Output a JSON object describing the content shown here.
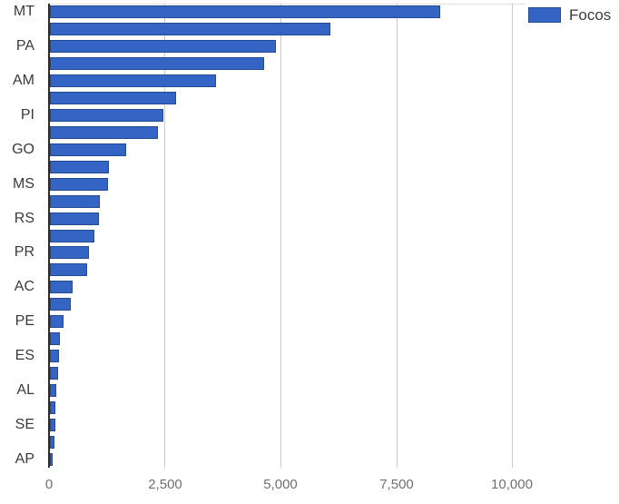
{
  "legend": {
    "label": "Focos"
  },
  "colors": {
    "bar_fill": "#3565c4",
    "bar_border": "#26498f",
    "gridline": "#cccccc",
    "axis_line": "#2b2b2b",
    "y_label_text": "#3a3a3a",
    "x_label_text": "#6f6f6f"
  },
  "chart_data": {
    "type": "bar",
    "orientation": "horizontal",
    "title": "",
    "xlabel": "",
    "ylabel": "",
    "series_name": "Focos",
    "legend_position": "top-right",
    "grid": true,
    "xlim": [
      0,
      10000
    ],
    "x_ticks": [
      {
        "label": "0",
        "value": 0
      },
      {
        "label": "2,500",
        "value": 2500
      },
      {
        "label": "5,000",
        "value": 5000
      },
      {
        "label": "7,500",
        "value": 7500
      },
      {
        "label": "10,000",
        "value": 10000
      }
    ],
    "categories": [
      "MT",
      "",
      "PA",
      "",
      "AM",
      "",
      "PI",
      "",
      "GO",
      "",
      "MS",
      "",
      "RS",
      "",
      "PR",
      "",
      "AC",
      "",
      "PE",
      "",
      "ES",
      "",
      "AL",
      "",
      "SE",
      "",
      "AP"
    ],
    "values": [
      8420,
      6030,
      4870,
      4600,
      3570,
      2710,
      2440,
      2320,
      1630,
      1260,
      1240,
      1060,
      1030,
      945,
      825,
      785,
      470,
      435,
      270,
      200,
      180,
      155,
      110,
      100,
      90,
      80,
      40
    ],
    "note": "labels shown on alternating rows only; unlabeled rows are intermediate categories"
  }
}
